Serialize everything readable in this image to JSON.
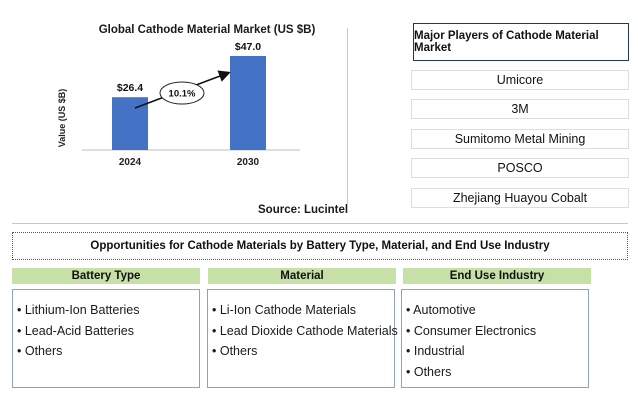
{
  "chart_data": {
    "type": "bar",
    "title": "Global Cathode Material Market (US $B)",
    "ylabel": "Value (US $B)",
    "xlabel": "",
    "categories": [
      "2024",
      "2030"
    ],
    "values": [
      26.4,
      47.0
    ],
    "value_labels": [
      "$26.4",
      "$47.0"
    ],
    "ylim": [
      0,
      55
    ],
    "bar_color": "#4472c4",
    "annotation": "10.1%",
    "grid": false
  },
  "source": "Source: Lucintel",
  "players": {
    "title": "Major Players of Cathode Material Market",
    "items": [
      "Umicore",
      "3M",
      "Sumitomo Metal Mining",
      "POSCO",
      "Zhejiang Huayou Cobalt"
    ]
  },
  "opportunities": {
    "title": "Opportunities for Cathode Materials by Battery Type, Material, and End Use Industry",
    "header_color": "#c6e0a8",
    "categories": [
      {
        "title": "Battery Type",
        "items": [
          "Lithium-Ion Batteries",
          "Lead-Acid Batteries",
          "Others"
        ]
      },
      {
        "title": "Material",
        "items": [
          "Li-Ion Cathode Materials",
          "Lead Dioxide Cathode Materials",
          "Others"
        ]
      },
      {
        "title": "End Use Industry",
        "items": [
          "Automotive",
          "Consumer Electronics",
          "Industrial",
          "Others"
        ]
      }
    ]
  }
}
